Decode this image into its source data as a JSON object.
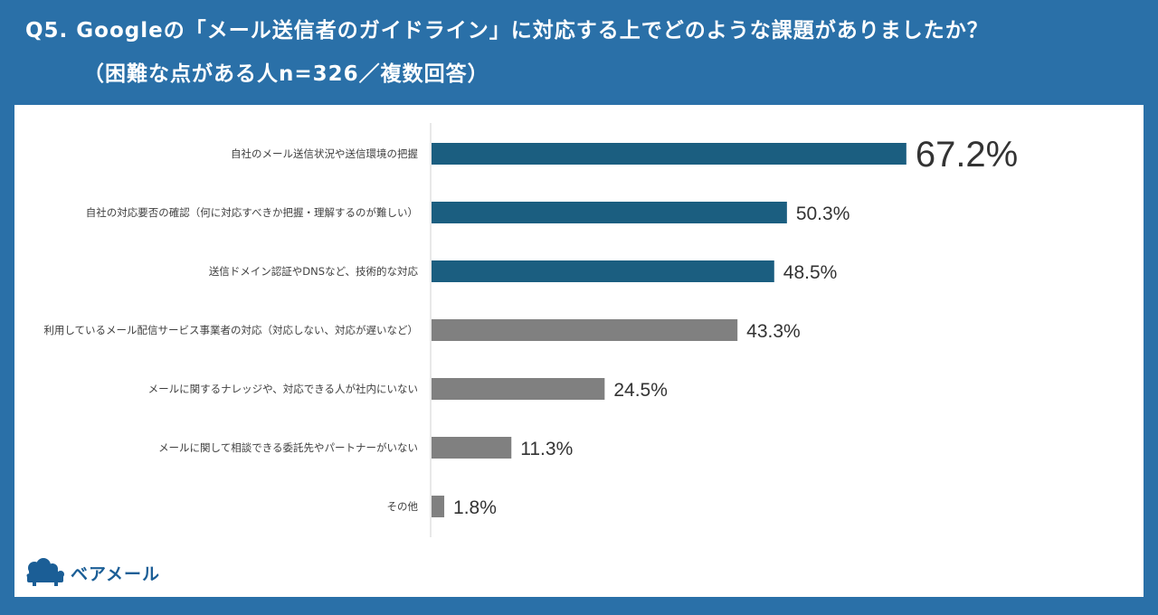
{
  "header": {
    "title": "Q5. Googleの「メール送信者のガイドライン」に対応する上でどのような課題がありましたか？",
    "subtitle": "（困難な点がある人n=326／複数回答）"
  },
  "logo": {
    "icon": "bear-cloud-icon",
    "text": "ベアメール"
  },
  "colors": {
    "background": "#2a70a8",
    "bar_highlight": "#1b5e80",
    "bar_normal": "#808080",
    "top_value": "#e02020",
    "logo": "#1b5e96"
  },
  "chart_data": {
    "type": "bar",
    "orientation": "horizontal",
    "title": "Q5. Googleの「メール送信者のガイドライン」に対応する上でどのような課題がありましたか？",
    "subtitle": "（困難な点がある人n=326／複数回答）",
    "categories": [
      "自社のメール送信状況や送信環境の把握",
      "自社の対応要否の確認（何に対応すべきか把握・理解するのが難しい）",
      "送信ドメイン認証やDNSなど、技術的な対応",
      "利用しているメール配信サービス事業者の対応（対応しない、対応が遅いなど）",
      "メールに関するナレッジや、対応できる人が社内にいない",
      "メールに関して相談できる委託先やパートナーがいない",
      "その他"
    ],
    "values": [
      67.2,
      50.3,
      48.5,
      43.3,
      24.5,
      11.3,
      1.8
    ],
    "value_labels": [
      "67.2%",
      "50.3%",
      "48.5%",
      "43.3%",
      "24.5%",
      "11.3%",
      "1.8%"
    ],
    "highlight_count": 3,
    "unit": "%",
    "xlim": [
      0,
      100
    ],
    "xlabel": "",
    "ylabel": "",
    "grid": false,
    "legend": "none"
  }
}
